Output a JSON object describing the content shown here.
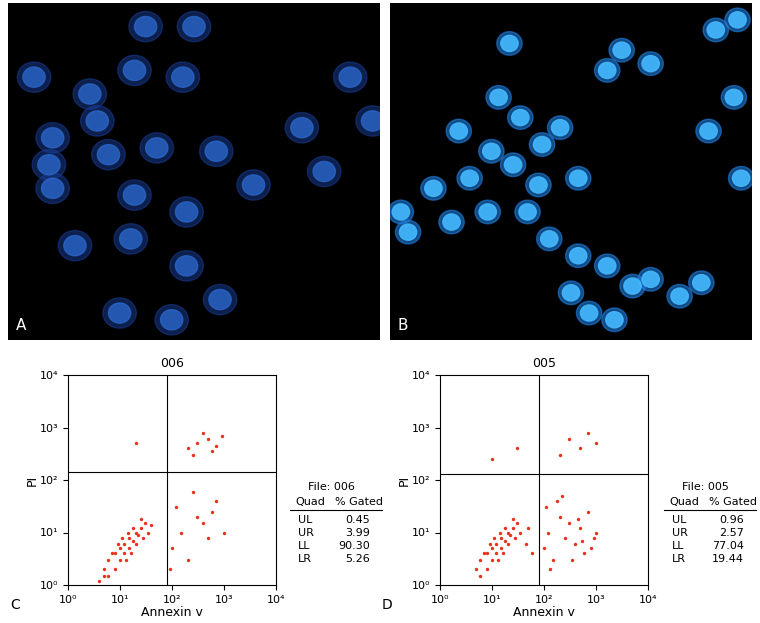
{
  "chart_data": [
    {
      "type": "image",
      "panel": "A"
    },
    {
      "type": "image",
      "panel": "B"
    },
    {
      "type": "scatter",
      "panel": "C",
      "title": "006",
      "x_label": "Annexin v",
      "y_label": "PI",
      "log": true,
      "color": "#e8321e",
      "xlim": [
        1,
        10000
      ],
      "ylim": [
        1,
        10000
      ],
      "xticks": [
        {
          "value": 1,
          "label": "10⁰"
        },
        {
          "value": 10,
          "label": "10¹"
        },
        {
          "value": 100,
          "label": "10²"
        },
        {
          "value": 1000,
          "label": "10³"
        },
        {
          "value": 10000,
          "label": "10⁴"
        }
      ],
      "yticks": [
        {
          "value": 1,
          "label": "10⁰"
        },
        {
          "value": 10,
          "label": "10¹"
        },
        {
          "value": 100,
          "label": "10²"
        },
        {
          "value": 1000,
          "label": "10³"
        },
        {
          "value": 10000,
          "label": "10⁴"
        }
      ],
      "gate_x": 80,
      "gate_y": 140,
      "x": [
        5,
        6,
        8,
        10,
        12,
        15,
        20,
        25,
        30,
        8,
        10,
        12,
        15,
        18,
        22,
        6,
        9,
        11,
        14,
        18,
        25,
        7,
        13,
        16,
        20,
        28,
        35,
        4,
        5,
        40,
        100,
        150,
        200,
        300,
        500,
        700,
        120,
        250,
        400,
        90,
        600,
        1000,
        200,
        300,
        500,
        700,
        400,
        600,
        900,
        250,
        20
      ],
      "y": [
        2,
        3,
        4,
        5,
        6,
        8,
        10,
        12,
        15,
        2,
        3,
        4,
        5,
        7,
        9,
        1.5,
        6,
        8,
        10,
        12,
        18,
        4,
        3,
        4,
        6,
        8,
        10,
        1.2,
        1.5,
        14,
        5,
        10,
        3,
        20,
        8,
        40,
        30,
        60,
        15,
        2,
        25,
        10,
        400,
        500,
        600,
        450,
        800,
        350,
        700,
        300,
        500
      ],
      "table": {
        "file": "File: 006",
        "header": [
          "Quad",
          "% Gated"
        ],
        "rows": [
          [
            "UL",
            "0.45"
          ],
          [
            "UR",
            "3.99"
          ],
          [
            "LL",
            "90.30"
          ],
          [
            "LR",
            "5.26"
          ]
        ]
      }
    },
    {
      "type": "scatter",
      "panel": "D",
      "title": "005",
      "x_label": "Annexin v",
      "y_label": "PI",
      "log": true,
      "color": "#e8321e",
      "xlim": [
        1,
        10000
      ],
      "ylim": [
        1,
        10000
      ],
      "xticks": [
        {
          "value": 1,
          "label": "10⁰"
        },
        {
          "value": 10,
          "label": "10¹"
        },
        {
          "value": 100,
          "label": "10²"
        },
        {
          "value": 1000,
          "label": "10³"
        },
        {
          "value": 10000,
          "label": "10⁴"
        }
      ],
      "yticks": [
        {
          "value": 1,
          "label": "10⁰"
        },
        {
          "value": 10,
          "label": "10¹"
        },
        {
          "value": 100,
          "label": "10²"
        },
        {
          "value": 1000,
          "label": "10³"
        },
        {
          "value": 10000,
          "label": "10⁴"
        }
      ],
      "gate_x": 80,
      "gate_y": 130,
      "x": [
        5,
        6,
        8,
        10,
        12,
        15,
        20,
        25,
        30,
        8,
        10,
        12,
        15,
        18,
        22,
        6,
        9,
        11,
        14,
        18,
        25,
        7,
        13,
        16,
        20,
        28,
        35,
        45,
        50,
        60,
        100,
        120,
        150,
        200,
        250,
        300,
        400,
        500,
        600,
        700,
        900,
        1000,
        110,
        180,
        350,
        450,
        800,
        130,
        220,
        550,
        300,
        500,
        700,
        200,
        1000,
        30,
        10
      ],
      "y": [
        2,
        3,
        4,
        5,
        6,
        8,
        10,
        12,
        15,
        2,
        3,
        4,
        5,
        7,
        9,
        1.5,
        6,
        8,
        10,
        12,
        18,
        4,
        3,
        4,
        6,
        8,
        10,
        6,
        12,
        4,
        5,
        10,
        3,
        20,
        8,
        15,
        6,
        12,
        4,
        25,
        8,
        10,
        30,
        40,
        3,
        18,
        5,
        2,
        50,
        7,
        600,
        400,
        800,
        300,
        500,
        400,
        250
      ],
      "table": {
        "file": "File: 005",
        "header": [
          "Quad",
          "% Gated"
        ],
        "rows": [
          [
            "UL",
            "0.96"
          ],
          [
            "UR",
            "2.57"
          ],
          [
            "LL",
            "77.04"
          ],
          [
            "LR",
            "19.44"
          ]
        ]
      }
    }
  ]
}
